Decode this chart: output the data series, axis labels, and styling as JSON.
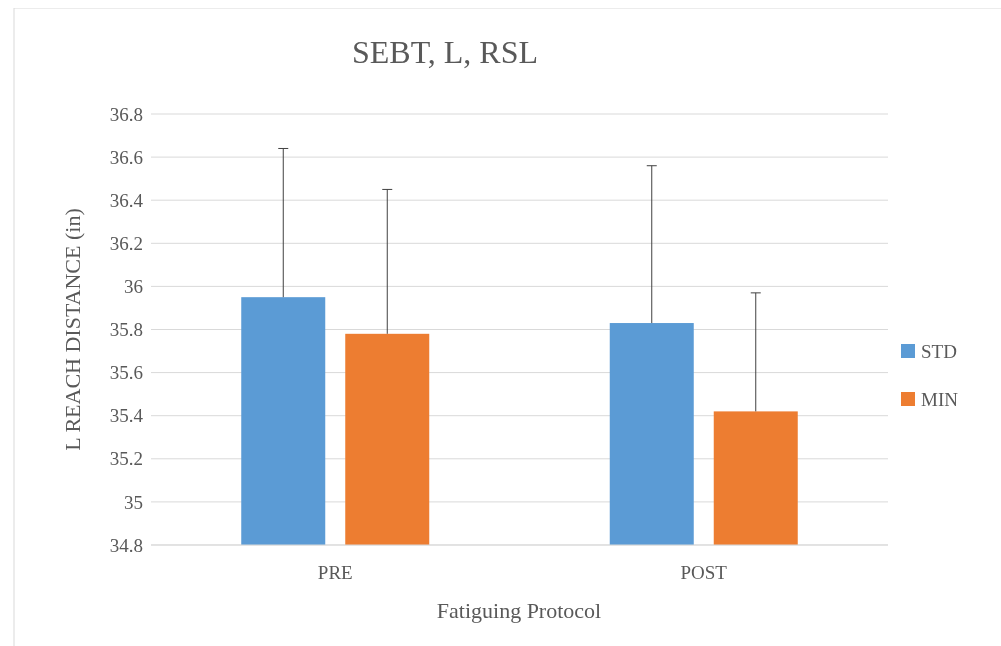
{
  "chart_data": {
    "type": "bar",
    "title": "SEBT, L, RSL",
    "xlabel": "Fatiguing Protocol",
    "ylabel": "L REACH DISTANCE  (in)",
    "categories": [
      "PRE",
      "POST"
    ],
    "series": [
      {
        "name": "STD",
        "color": "#5b9bd5",
        "values": [
          35.95,
          35.83
        ],
        "errors": [
          [
            35.95,
            36.64
          ],
          [
            35.83,
            36.56
          ]
        ]
      },
      {
        "name": "MIN",
        "color": "#ed7d31",
        "values": [
          35.78,
          35.42
        ],
        "errors": [
          [
            35.78,
            36.45
          ],
          [
            35.42,
            35.97
          ]
        ]
      }
    ],
    "ylim": [
      34.8,
      36.8
    ],
    "yticks": [
      34.8,
      35,
      35.2,
      35.4,
      35.6,
      35.8,
      36,
      36.2,
      36.4,
      36.6,
      36.8
    ],
    "grid": "y",
    "legend": "right"
  }
}
